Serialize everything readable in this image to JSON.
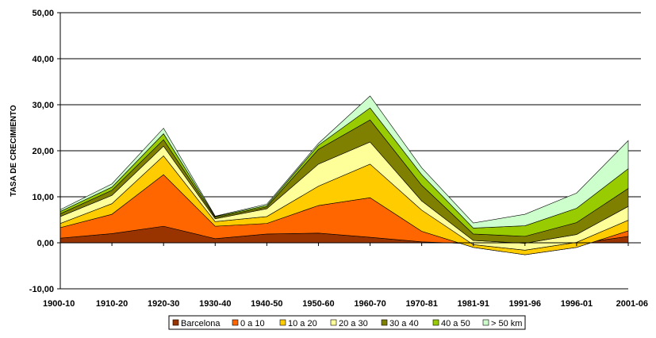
{
  "chart_data": {
    "type": "area",
    "stacked": true,
    "title": "",
    "xlabel": "",
    "ylabel": "TASA DE CRECIMIENTO",
    "ylim": [
      -10,
      50
    ],
    "yticks": [
      -10,
      0,
      10,
      20,
      30,
      40,
      50
    ],
    "ytick_labels": [
      "-10,00",
      "0,00",
      "10,00",
      "20,00",
      "30,00",
      "40,00",
      "50,00"
    ],
    "grid": true,
    "legend_position": "bottom",
    "categories": [
      "1900-10",
      "1910-20",
      "1920-30",
      "1930-40",
      "1940-50",
      "1950-60",
      "1960-70",
      "1970-81",
      "1981-91",
      "1991-96",
      "1996-01",
      "2001-06"
    ],
    "series": [
      {
        "name": "Barcelona",
        "color": "#993300",
        "values": [
          1.0,
          2.0,
          3.6,
          0.9,
          1.9,
          2.1,
          1.2,
          0.2,
          -0.2,
          -0.3,
          -0.2,
          1.4
        ]
      },
      {
        "name": "0 a 10",
        "color": "#FF6600",
        "values": [
          2.3,
          4.2,
          11.2,
          2.7,
          2.3,
          6.0,
          8.6,
          2.3,
          -0.8,
          -2.3,
          -0.8,
          1.2
        ]
      },
      {
        "name": "10 a 20",
        "color": "#FFCC00",
        "values": [
          0.9,
          2.3,
          4.1,
          1.0,
          1.5,
          4.2,
          7.3,
          4.6,
          0.6,
          1.0,
          1.1,
          2.3
        ]
      },
      {
        "name": "20 a 30",
        "color": "#FFFF99",
        "values": [
          1.5,
          1.8,
          2.1,
          0.6,
          1.7,
          4.8,
          4.8,
          2.0,
          0.9,
          1.5,
          1.7,
          3.0
        ]
      },
      {
        "name": "30 a 40",
        "color": "#808000",
        "values": [
          0.6,
          1.1,
          1.4,
          0.3,
          0.4,
          3.2,
          4.8,
          3.4,
          1.4,
          1.5,
          2.6,
          3.9
        ]
      },
      {
        "name": "40 a 50",
        "color": "#99CC00",
        "values": [
          0.5,
          0.7,
          1.3,
          0.2,
          0.3,
          0.9,
          2.6,
          2.3,
          1.3,
          2.3,
          3.1,
          4.3
        ]
      },
      {
        "name": "> 50 km",
        "color": "#CCFFCC",
        "values": [
          0.4,
          0.7,
          1.2,
          0.1,
          0.3,
          0.4,
          2.6,
          1.5,
          1.1,
          2.5,
          3.3,
          6.1
        ]
      }
    ]
  }
}
